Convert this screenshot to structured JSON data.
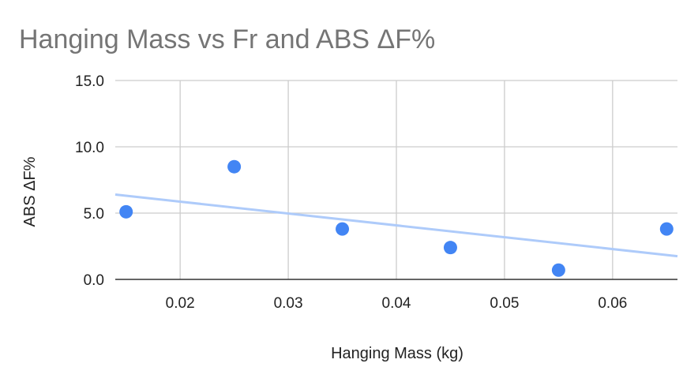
{
  "chart_data": {
    "type": "scatter",
    "title": "Hanging Mass vs Fr and ABS ΔF%",
    "xlabel": "Hanging Mass (kg)",
    "ylabel": "ABS ΔF%",
    "xlim": [
      0.014,
      0.066
    ],
    "ylim": [
      0,
      15
    ],
    "x_ticks": [
      0.02,
      0.03,
      0.04,
      0.05,
      0.06
    ],
    "x_tick_labels": [
      "0.02",
      "0.03",
      "0.04",
      "0.05",
      "0.06"
    ],
    "y_ticks": [
      0,
      5,
      10,
      15
    ],
    "y_tick_labels": [
      "0.0",
      "5.0",
      "10.0",
      "15.0"
    ],
    "grid": true,
    "legend": "none",
    "series": [
      {
        "x": [
          0.015,
          0.025,
          0.035,
          0.045,
          0.055,
          0.065
        ],
        "y": [
          5.1,
          8.5,
          3.8,
          2.4,
          0.7,
          3.8
        ],
        "color": "#4285f4"
      }
    ],
    "trendline": {
      "type": "linear",
      "x": [
        0.014,
        0.066
      ],
      "y": [
        6.4,
        1.75
      ],
      "color": "#aecbfa"
    }
  }
}
